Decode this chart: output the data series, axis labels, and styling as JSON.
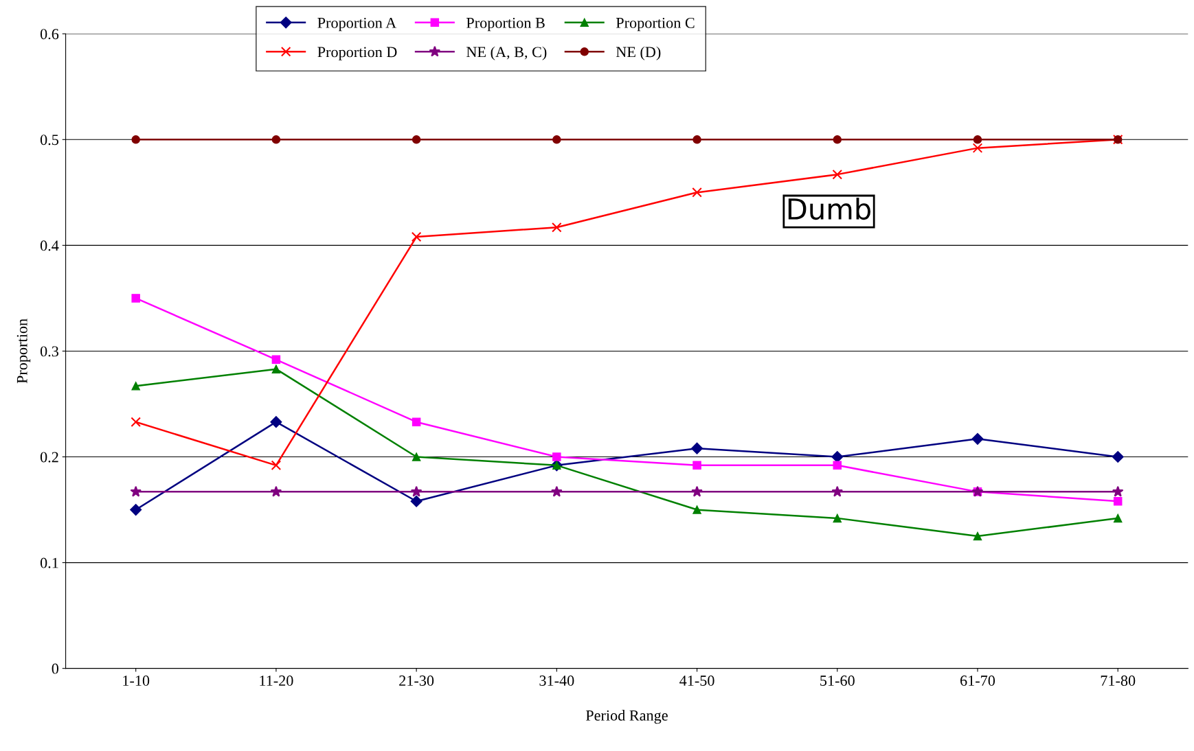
{
  "chart_data": {
    "type": "line",
    "xlabel": "Period Range",
    "ylabel": "Proportion",
    "categories": [
      "1-10",
      "11-20",
      "21-30",
      "31-40",
      "41-50",
      "51-60",
      "61-70",
      "71-80"
    ],
    "series": [
      {
        "name": "Proportion A",
        "color": "#000080",
        "marker": "diamond",
        "values": [
          0.15,
          0.233,
          0.158,
          0.192,
          0.208,
          0.2,
          0.217,
          0.2
        ]
      },
      {
        "name": "Proportion B",
        "color": "#ff00ff",
        "marker": "square",
        "values": [
          0.35,
          0.292,
          0.233,
          0.2,
          0.192,
          0.192,
          0.167,
          0.158
        ]
      },
      {
        "name": "Proportion C",
        "color": "#008000",
        "marker": "triangle",
        "values": [
          0.267,
          0.283,
          0.2,
          0.192,
          0.15,
          0.142,
          0.125,
          0.142
        ]
      },
      {
        "name": "Proportion D",
        "color": "#ff0000",
        "marker": "cross",
        "values": [
          0.233,
          0.192,
          0.408,
          0.417,
          0.45,
          0.467,
          0.492,
          0.5
        ]
      },
      {
        "name": "NE (A, B, C)",
        "color": "#800080",
        "marker": "star",
        "values": [
          0.167,
          0.167,
          0.167,
          0.167,
          0.167,
          0.167,
          0.167,
          0.167
        ]
      },
      {
        "name": "NE (D)",
        "color": "#800000",
        "marker": "circle",
        "values": [
          0.5,
          0.5,
          0.5,
          0.5,
          0.5,
          0.5,
          0.5,
          0.5
        ]
      }
    ],
    "ylim": [
      0,
      0.6
    ],
    "yticks": [
      0,
      0.1,
      0.2,
      0.3,
      0.4,
      0.5,
      0.6
    ],
    "grid": "y",
    "legend": "top",
    "line_style": "solid",
    "annotations": [
      "Dumb"
    ]
  }
}
